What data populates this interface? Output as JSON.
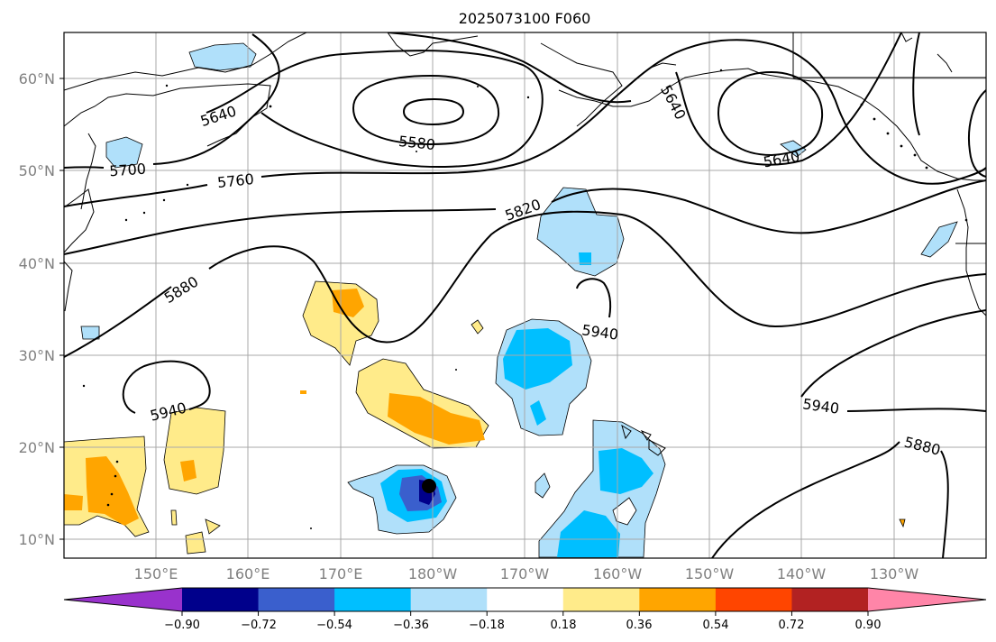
{
  "title": "2025073100 F060",
  "map": {
    "lat_labels": [
      "60°N",
      "50°N",
      "40°N",
      "30°N",
      "20°N",
      "10°N"
    ],
    "lon_labels": [
      "150°E",
      "160°E",
      "170°E",
      "180°W",
      "170°W",
      "160°W",
      "150°W",
      "140°W",
      "130°W"
    ],
    "lon_range": [
      140,
      240
    ],
    "lat_range": [
      8,
      65
    ],
    "gridlines": true,
    "contour_labels": [
      "5580",
      "5640",
      "5640",
      "5700",
      "5760",
      "5820",
      "5880",
      "5880",
      "5940",
      "5940",
      "5940",
      "5640"
    ],
    "marker": {
      "name": "storm-center",
      "lon": 180,
      "lat": 15.8
    }
  },
  "colorbar": {
    "ticks": [
      "−0.90",
      "−0.72",
      "−0.54",
      "−0.36",
      "−0.18",
      "0.18",
      "0.36",
      "0.54",
      "0.72",
      "0.90"
    ],
    "colors": [
      "#9932cc",
      "#00008b",
      "#3a5fcd",
      "#00bfff",
      "#b0e0fa",
      "#ffffff",
      "#ffeb8a",
      "#ffa500",
      "#ff4500",
      "#b22222",
      "#ff85a8"
    ]
  }
}
